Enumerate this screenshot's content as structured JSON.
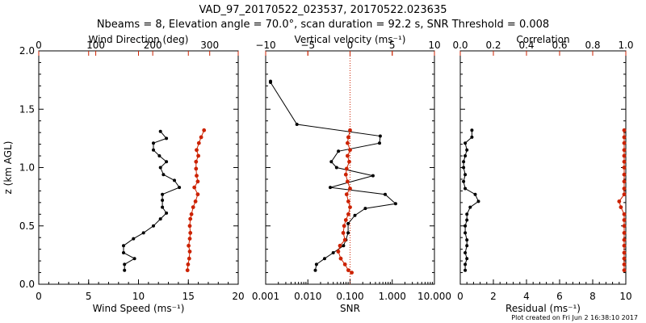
{
  "title": "VAD_97_20170522_023537, 20170522.023635",
  "subtitle": "Nbeams = 8, Elevation angle = 70.0°, scan duration = 92.2 s, SNR Threshold = 0.008",
  "footer": "Plot created on Fri Jun  2 16:38:10 2017",
  "colors": {
    "primary": "#000000",
    "secondary": "#cc2200"
  },
  "chart_data": [
    {
      "type": "line",
      "panel": "wind",
      "xlabel": "Wind Speed (ms⁻¹)",
      "top_label": "Wind Direction (deg)",
      "ylabel": "z (km AGL)",
      "xlim": [
        0,
        20
      ],
      "top_lim": [
        0,
        350
      ],
      "ylim": [
        0,
        2.0
      ],
      "xticks": [
        "0",
        "5",
        "10",
        "15",
        "20"
      ],
      "top_ticks": [
        "0",
        "100",
        "200",
        "300"
      ],
      "yticks": [
        "0.0",
        "0.5",
        "1.0",
        "1.5",
        "2.0"
      ],
      "series": [
        {
          "role": "bottom",
          "color": "#000000",
          "points": [
            [
              8.6,
              0.12
            ],
            [
              8.6,
              0.17
            ],
            [
              9.6,
              0.22
            ],
            [
              8.5,
              0.27
            ],
            [
              8.5,
              0.33
            ],
            [
              9.5,
              0.39
            ],
            [
              10.5,
              0.44
            ],
            [
              11.5,
              0.5
            ],
            [
              12.2,
              0.56
            ],
            [
              12.8,
              0.61
            ],
            [
              12.4,
              0.66
            ],
            [
              12.4,
              0.72
            ],
            [
              12.4,
              0.77
            ],
            [
              14.1,
              0.83
            ],
            [
              13.6,
              0.89
            ],
            [
              12.5,
              0.94
            ],
            [
              12.2,
              1.0
            ],
            [
              12.8,
              1.05
            ],
            [
              12.1,
              1.1
            ],
            [
              11.5,
              1.15
            ],
            [
              11.5,
              1.21
            ],
            [
              12.8,
              1.25
            ],
            [
              12.2,
              1.31
            ]
          ]
        },
        {
          "role": "top",
          "color": "#cc2200",
          "points": [
            [
              261,
              0.12
            ],
            [
              262,
              0.17
            ],
            [
              264,
              0.22
            ],
            [
              265,
              0.28
            ],
            [
              263,
              0.33
            ],
            [
              265,
              0.39
            ],
            [
              266,
              0.44
            ],
            [
              265,
              0.5
            ],
            [
              266,
              0.56
            ],
            [
              268,
              0.6
            ],
            [
              271,
              0.66
            ],
            [
              275,
              0.71
            ],
            [
              279,
              0.77
            ],
            [
              273,
              0.83
            ],
            [
              279,
              0.88
            ],
            [
              277,
              0.93
            ],
            [
              276,
              0.99
            ],
            [
              276,
              1.05
            ],
            [
              280,
              1.1
            ],
            [
              277,
              1.15
            ],
            [
              281,
              1.21
            ],
            [
              285,
              1.26
            ],
            [
              290,
              1.32
            ]
          ]
        }
      ]
    },
    {
      "type": "line",
      "panel": "snr",
      "xlabel": "SNR",
      "top_label": "Vertical velocity (ms⁻¹)",
      "xscale": "log",
      "xlim": [
        0.001,
        10
      ],
      "top_lim": [
        -10,
        10
      ],
      "ylim": [
        0,
        2.0
      ],
      "xticks": [
        "0.001",
        "0.010",
        "0.100",
        "1.000",
        "10.000"
      ],
      "top_ticks": [
        "−10",
        "−5",
        "0",
        "5",
        "10"
      ],
      "reference_line": 0.1,
      "series": [
        {
          "role": "bottom",
          "color": "#000000",
          "points": [
            [
              0.0013,
              1.74
            ],
            [
              0.0013,
              1.73
            ],
            [
              0.0055,
              1.37
            ],
            [
              0.52,
              1.27
            ],
            [
              0.5,
              1.21
            ],
            [
              0.053,
              1.14
            ],
            [
              0.036,
              1.05
            ],
            [
              0.048,
              1.0
            ],
            [
              0.35,
              0.93
            ],
            [
              0.034,
              0.83
            ],
            [
              0.68,
              0.77
            ],
            [
              1.2,
              0.69
            ],
            [
              0.23,
              0.65
            ],
            [
              0.13,
              0.59
            ],
            [
              0.09,
              0.52
            ],
            [
              0.09,
              0.44
            ],
            [
              0.08,
              0.38
            ],
            [
              0.07,
              0.33
            ],
            [
              0.04,
              0.27
            ],
            [
              0.025,
              0.22
            ],
            [
              0.016,
              0.17
            ],
            [
              0.015,
              0.12
            ]
          ]
        },
        {
          "role": "top",
          "color": "#cc2200",
          "points": [
            [
              0.0,
              1.32
            ],
            [
              -0.2,
              1.26
            ],
            [
              -0.3,
              1.21
            ],
            [
              0.0,
              1.15
            ],
            [
              -0.3,
              1.1
            ],
            [
              -0.1,
              1.05
            ],
            [
              -0.4,
              0.99
            ],
            [
              -0.5,
              0.94
            ],
            [
              -0.3,
              0.88
            ],
            [
              0.0,
              0.82
            ],
            [
              -0.4,
              0.77
            ],
            [
              -0.2,
              0.71
            ],
            [
              0.0,
              0.66
            ],
            [
              -0.2,
              0.6
            ],
            [
              -0.5,
              0.55
            ],
            [
              -0.7,
              0.5
            ],
            [
              -0.8,
              0.44
            ],
            [
              -0.6,
              0.38
            ],
            [
              -1.2,
              0.33
            ],
            [
              -1.4,
              0.28
            ],
            [
              -1.1,
              0.22
            ],
            [
              -0.6,
              0.17
            ],
            [
              -0.2,
              0.12
            ],
            [
              0.2,
              0.1
            ]
          ]
        }
      ]
    },
    {
      "type": "line",
      "panel": "residual",
      "xlabel": "Residual (ms⁻¹)",
      "top_label": "Correlation",
      "xlim": [
        0,
        10
      ],
      "top_lim": [
        0,
        1.0
      ],
      "ylim": [
        0,
        2.0
      ],
      "xticks": [
        "0",
        "2",
        "4",
        "6",
        "8",
        "10"
      ],
      "top_ticks": [
        "0.0",
        "0.2",
        "0.4",
        "0.6",
        "0.8",
        "1.0"
      ],
      "series": [
        {
          "role": "bottom",
          "color": "#000000",
          "points": [
            [
              0.3,
              0.12
            ],
            [
              0.3,
              0.17
            ],
            [
              0.4,
              0.22
            ],
            [
              0.3,
              0.27
            ],
            [
              0.4,
              0.33
            ],
            [
              0.4,
              0.38
            ],
            [
              0.3,
              0.44
            ],
            [
              0.3,
              0.5
            ],
            [
              0.4,
              0.55
            ],
            [
              0.4,
              0.6
            ],
            [
              0.6,
              0.66
            ],
            [
              1.1,
              0.71
            ],
            [
              0.9,
              0.77
            ],
            [
              0.3,
              0.82
            ],
            [
              0.2,
              0.88
            ],
            [
              0.3,
              0.94
            ],
            [
              0.2,
              1.0
            ],
            [
              0.2,
              1.05
            ],
            [
              0.3,
              1.1
            ],
            [
              0.4,
              1.15
            ],
            [
              0.3,
              1.21
            ],
            [
              0.7,
              1.26
            ],
            [
              0.7,
              1.32
            ]
          ]
        },
        {
          "role": "top",
          "color": "#cc2200",
          "points": [
            [
              0.99,
              0.12
            ],
            [
              0.99,
              0.17
            ],
            [
              0.99,
              0.22
            ],
            [
              0.99,
              0.27
            ],
            [
              0.99,
              0.33
            ],
            [
              0.99,
              0.38
            ],
            [
              0.99,
              0.44
            ],
            [
              0.99,
              0.5
            ],
            [
              0.99,
              0.55
            ],
            [
              0.99,
              0.6
            ],
            [
              0.97,
              0.66
            ],
            [
              0.96,
              0.71
            ],
            [
              0.99,
              0.77
            ],
            [
              0.99,
              0.82
            ],
            [
              0.99,
              0.88
            ],
            [
              0.99,
              0.94
            ],
            [
              0.99,
              1.0
            ],
            [
              0.99,
              1.05
            ],
            [
              0.99,
              1.1
            ],
            [
              0.99,
              1.15
            ],
            [
              0.99,
              1.21
            ],
            [
              0.99,
              1.26
            ],
            [
              0.99,
              1.32
            ]
          ]
        }
      ]
    }
  ]
}
